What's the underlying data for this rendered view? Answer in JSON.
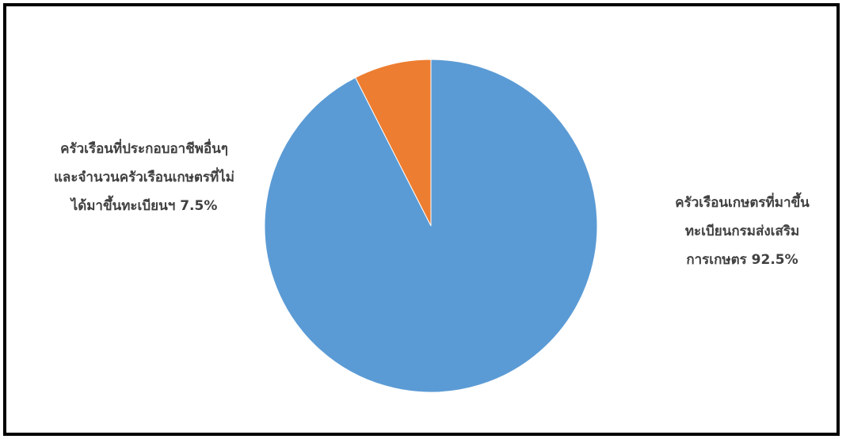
{
  "chart_data": {
    "type": "pie",
    "slices": [
      {
        "label_lines": [
          "ครัวเรือนเกษตรที่มาขึ้น",
          "ทะเบียนกรมส่งเสริม",
          "การเกษตร 92.5%"
        ],
        "value": 92.5,
        "color": "#5b9bd5"
      },
      {
        "label_lines": [
          "ครัวเรือนที่ประกอบอาชีพอื่นๆ",
          "และจำนวนครัวเรือนเกษตรที่ไม่",
          "ได้มาขึ้นทะเบียนฯ 7.5%"
        ],
        "value": 7.5,
        "color": "#ed7d31"
      }
    ],
    "title": "",
    "legend": "none",
    "start_angle": "12 o'clock",
    "direction": "clockwise"
  }
}
